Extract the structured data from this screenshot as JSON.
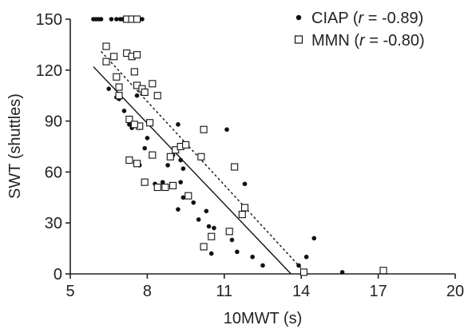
{
  "chart_data": {
    "type": "scatter",
    "title": "",
    "xlabel": "10MWT (s)",
    "ylabel": "SWT (shuttles)",
    "xlim": [
      5,
      20
    ],
    "ylim": [
      0,
      150
    ],
    "xticks": [
      5,
      8,
      11,
      14,
      17,
      20
    ],
    "yticks": [
      0,
      30,
      60,
      90,
      120,
      150
    ],
    "grid": false,
    "legend_position": "top-right",
    "series": [
      {
        "name": "CIAP",
        "legend_prefix": "CIAP (",
        "legend_r": "r",
        "legend_suffix": " = -0.89)",
        "marker": "filled-circle",
        "color": "#111111",
        "fit_line": {
          "style": "solid",
          "x": [
            5.9,
            13.6
          ],
          "y": [
            122,
            0
          ]
        },
        "points": [
          [
            5.9,
            150
          ],
          [
            6.0,
            150
          ],
          [
            6.1,
            150
          ],
          [
            6.2,
            150
          ],
          [
            6.6,
            150
          ],
          [
            6.8,
            150
          ],
          [
            6.95,
            150
          ],
          [
            7.05,
            150
          ],
          [
            7.15,
            150
          ],
          [
            7.8,
            150
          ],
          [
            6.5,
            109
          ],
          [
            6.8,
            104
          ],
          [
            6.9,
            103
          ],
          [
            7.1,
            96
          ],
          [
            7.3,
            88
          ],
          [
            7.4,
            86
          ],
          [
            7.6,
            105
          ],
          [
            7.7,
            86
          ],
          [
            7.9,
            107
          ],
          [
            7.7,
            64
          ],
          [
            7.9,
            74
          ],
          [
            8.0,
            80
          ],
          [
            8.3,
            53
          ],
          [
            8.6,
            54
          ],
          [
            8.8,
            64
          ],
          [
            9.0,
            70
          ],
          [
            9.2,
            88
          ],
          [
            9.3,
            67
          ],
          [
            9.4,
            62
          ],
          [
            9.2,
            38
          ],
          [
            9.3,
            54
          ],
          [
            9.4,
            45
          ],
          [
            9.8,
            42
          ],
          [
            10.0,
            32
          ],
          [
            10.3,
            37
          ],
          [
            10.4,
            28
          ],
          [
            10.5,
            22
          ],
          [
            10.5,
            12
          ],
          [
            10.6,
            27
          ],
          [
            11.1,
            85
          ],
          [
            11.3,
            20
          ],
          [
            11.5,
            13
          ],
          [
            11.8,
            53
          ],
          [
            12.1,
            10
          ],
          [
            12.5,
            5
          ],
          [
            13.9,
            5
          ],
          [
            14.2,
            10
          ],
          [
            14.5,
            21
          ],
          [
            15.6,
            1
          ]
        ]
      },
      {
        "name": "MMN",
        "legend_prefix": "MMN (",
        "legend_r": "r",
        "legend_suffix": " = -0.80)",
        "marker": "open-square",
        "color": "#111111",
        "fit_line": {
          "style": "dotted",
          "x": [
            6.2,
            14.2
          ],
          "y": [
            131,
            0
          ]
        },
        "points": [
          [
            7.2,
            150
          ],
          [
            7.4,
            150
          ],
          [
            7.6,
            150
          ],
          [
            6.4,
            134
          ],
          [
            6.4,
            125
          ],
          [
            6.7,
            128
          ],
          [
            6.8,
            116
          ],
          [
            6.9,
            105
          ],
          [
            6.9,
            110
          ],
          [
            7.2,
            130
          ],
          [
            7.4,
            128
          ],
          [
            7.5,
            119
          ],
          [
            7.6,
            111
          ],
          [
            7.6,
            129
          ],
          [
            7.7,
            87
          ],
          [
            7.8,
            109
          ],
          [
            7.9,
            107
          ],
          [
            8.1,
            89
          ],
          [
            8.2,
            112
          ],
          [
            7.3,
            91
          ],
          [
            7.5,
            88
          ],
          [
            8.4,
            105
          ],
          [
            7.3,
            67
          ],
          [
            7.6,
            65
          ],
          [
            7.9,
            54
          ],
          [
            8.2,
            70
          ],
          [
            8.4,
            51
          ],
          [
            8.7,
            51
          ],
          [
            8.9,
            69
          ],
          [
            9.1,
            73
          ],
          [
            9.3,
            75
          ],
          [
            9.5,
            76
          ],
          [
            9.0,
            52
          ],
          [
            9.6,
            46
          ],
          [
            10.2,
            85
          ],
          [
            10.1,
            69
          ],
          [
            10.2,
            16
          ],
          [
            10.5,
            22
          ],
          [
            11.2,
            25
          ],
          [
            11.4,
            63
          ],
          [
            11.7,
            35
          ],
          [
            11.8,
            39
          ],
          [
            14.1,
            1
          ],
          [
            17.2,
            2
          ]
        ]
      }
    ]
  }
}
